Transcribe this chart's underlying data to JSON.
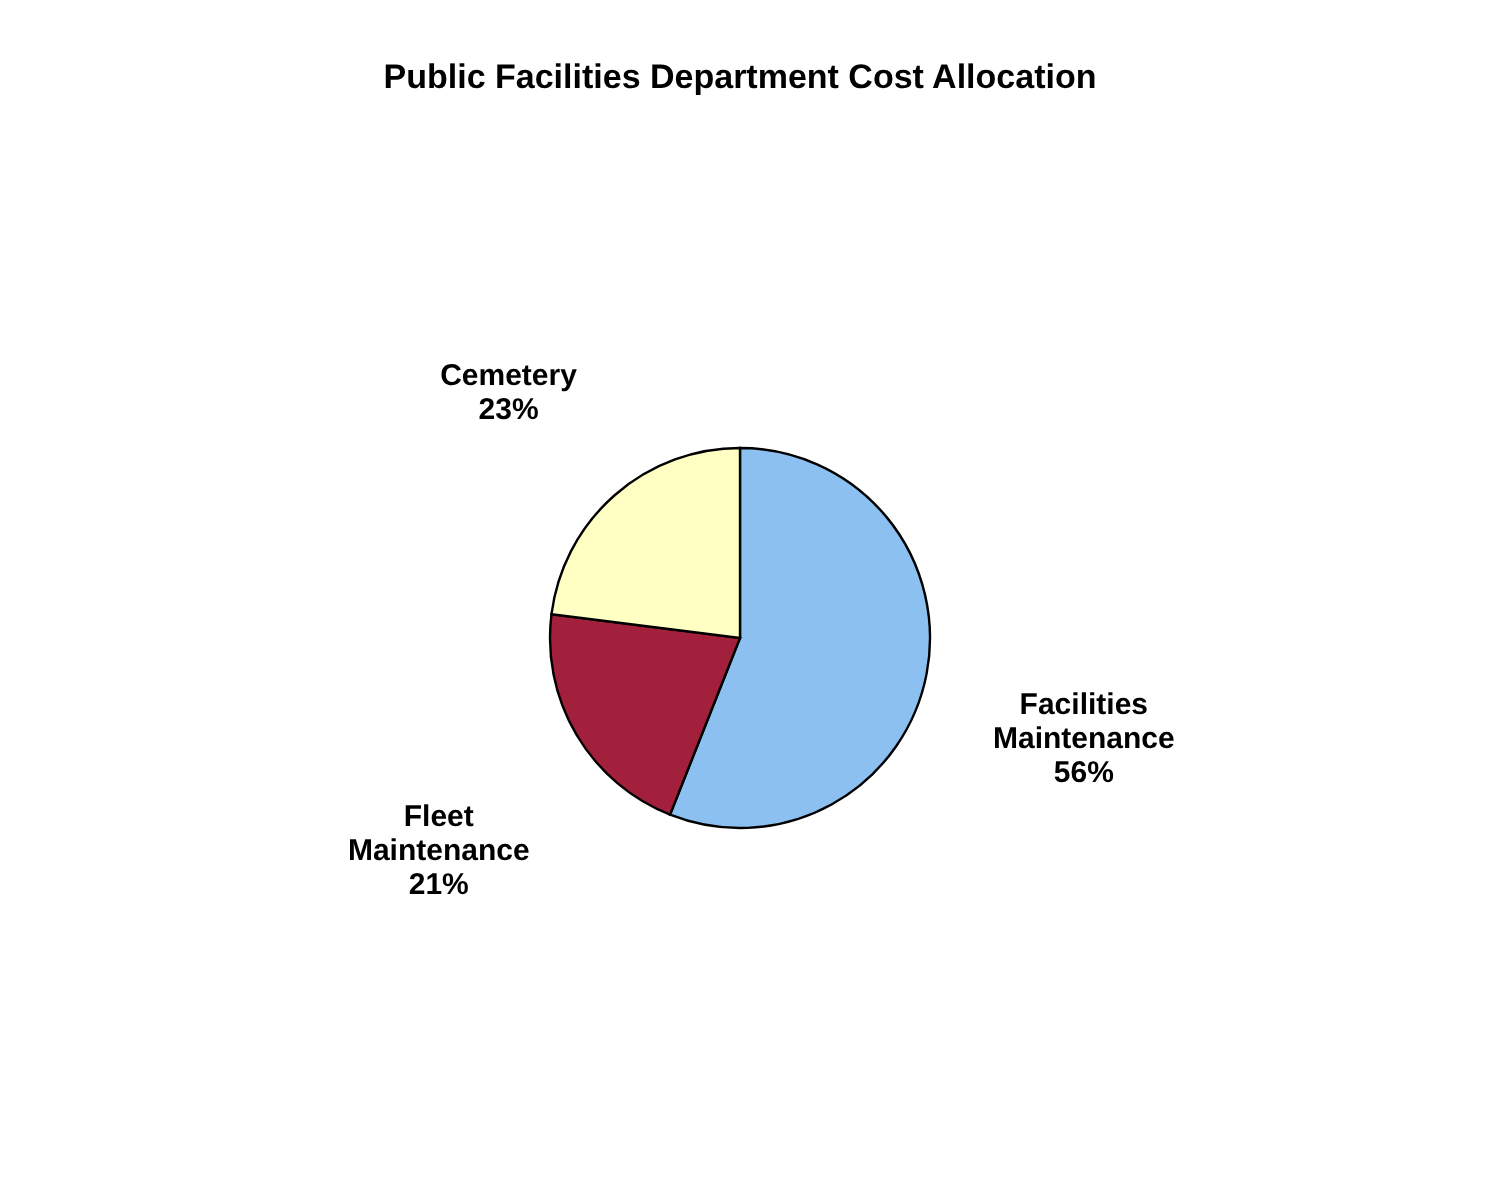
{
  "chart_data": {
    "type": "pie",
    "title": "Public Facilities Department Cost Allocation",
    "categories": [
      "Facilities Maintenance",
      "Fleet Maintenance",
      "Cemetery"
    ],
    "values": [
      56,
      21,
      23
    ],
    "value_labels": [
      "56%",
      "21%",
      "23%"
    ],
    "colors": [
      "#8cc0f0",
      "#a3203c",
      "#ffffc4"
    ],
    "legend": false
  }
}
